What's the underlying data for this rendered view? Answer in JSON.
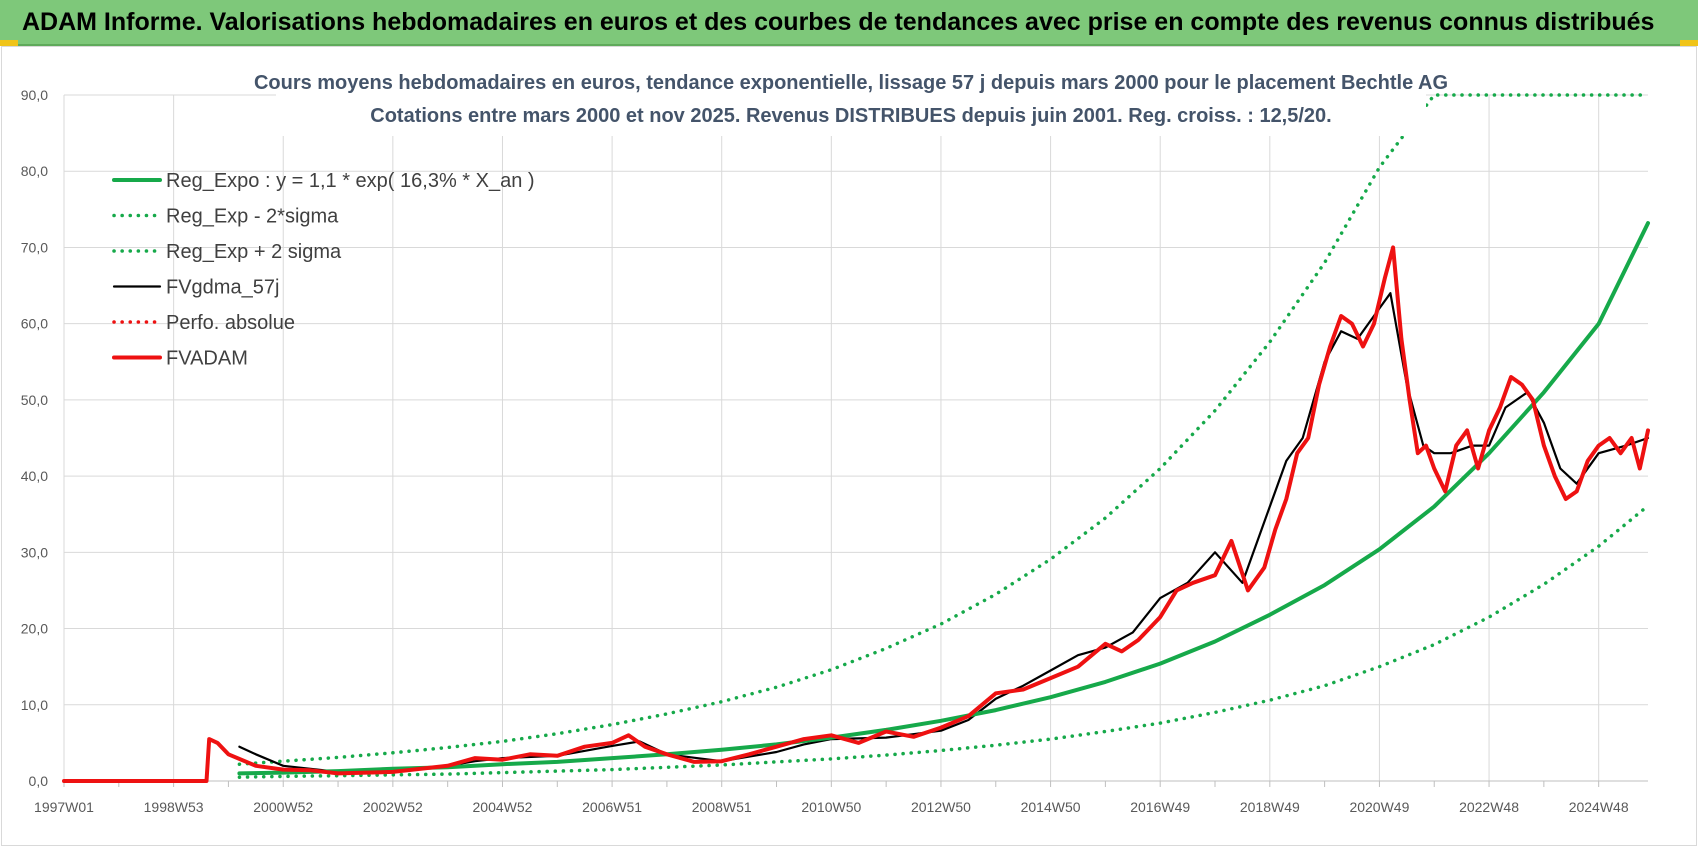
{
  "banner": {
    "title": "ADAM Informe. Valorisations hebdomadaires en euros et des courbes de tendances avec prise en compte des revenus connus distribués"
  },
  "chart_data": {
    "type": "line",
    "title": "Cours moyens hebdomadaires en euros, tendance exponentielle, lissage 57 j depuis mars 2000 pour le placement Bechtle AG",
    "subtitle": "Cotations entre mars 2000 et nov 2025. Revenus DISTRIBUES depuis juin 2001. Reg. croiss. : 12,5/20.",
    "xlabel": "",
    "ylabel": "",
    "ylim": [
      0,
      90
    ],
    "xlim": [
      1997.0,
      2025.9
    ],
    "yticks": [
      "0,0",
      "10,0",
      "20,0",
      "30,0",
      "40,0",
      "50,0",
      "60,0",
      "70,0",
      "80,0",
      "90,0"
    ],
    "xtick_labels": [
      "1997W01",
      "1998W53",
      "2000W52",
      "2002W52",
      "2004W52",
      "2006W51",
      "2008W51",
      "2010W50",
      "2012W50",
      "2014W50",
      "2016W49",
      "2018W49",
      "2020W49",
      "2022W48",
      "2024W48"
    ],
    "xtick_positions": [
      1997.0,
      1999.0,
      2001.0,
      2003.0,
      2005.0,
      2007.0,
      2009.0,
      2011.0,
      2013.0,
      2015.0,
      2017.0,
      2019.0,
      2021.0,
      2023.0,
      2025.0
    ],
    "grid": true,
    "legend_position": "top-left",
    "series": [
      {
        "name": "Reg_Expo : y = 1,1 * exp( 16,3% *  X_an )",
        "color": "#16a94a",
        "style": "solid",
        "x": [
          2000.2,
          2001,
          2002,
          2003,
          2004,
          2005,
          2006,
          2007,
          2008,
          2009,
          2010,
          2011,
          2012,
          2013,
          2014,
          2015,
          2016,
          2017,
          2018,
          2019,
          2020,
          2021,
          2022,
          2023,
          2024,
          2025,
          2025.9
        ],
        "values": [
          1.0,
          1.1,
          1.3,
          1.6,
          1.8,
          2.2,
          2.5,
          3.0,
          3.5,
          4.1,
          4.8,
          5.7,
          6.7,
          7.9,
          9.3,
          11.0,
          13.0,
          15.4,
          18.3,
          21.8,
          25.7,
          30.4,
          36.0,
          43.0,
          51.0,
          60.0,
          73.2
        ]
      },
      {
        "name": "Reg_Exp - 2*sigma",
        "color": "#16a94a",
        "style": "dotted",
        "x": [
          2000.2,
          2001,
          2002,
          2003,
          2004,
          2005,
          2006,
          2007,
          2008,
          2009,
          2010,
          2011,
          2012,
          2013,
          2014,
          2015,
          2016,
          2017,
          2018,
          2019,
          2020,
          2021,
          2022,
          2023,
          2024,
          2025,
          2025.9
        ],
        "values": [
          0.5,
          0.6,
          0.7,
          0.8,
          0.9,
          1.1,
          1.3,
          1.5,
          1.8,
          2.1,
          2.5,
          2.9,
          3.4,
          4.0,
          4.7,
          5.5,
          6.5,
          7.6,
          9.0,
          10.6,
          12.5,
          15.0,
          17.9,
          21.5,
          25.8,
          30.8,
          36.1
        ]
      },
      {
        "name": "Reg_Exp + 2 sigma",
        "color": "#16a94a",
        "style": "dotted",
        "x": [
          2000.2,
          2001,
          2002,
          2003,
          2004,
          2005,
          2006,
          2007,
          2008,
          2009,
          2010,
          2011,
          2012,
          2013,
          2014,
          2015,
          2016,
          2017,
          2018,
          2019,
          2020,
          2021,
          2022,
          2023,
          2024,
          2025,
          2025.9
        ],
        "values": [
          2.2,
          2.6,
          3.1,
          3.7,
          4.4,
          5.2,
          6.2,
          7.4,
          8.8,
          10.4,
          12.3,
          14.6,
          17.4,
          20.6,
          24.5,
          29.1,
          34.5,
          41.0,
          48.6,
          57.6,
          68.0,
          80.5,
          90.0,
          90.0,
          90.0,
          90.0,
          90.0
        ]
      },
      {
        "name": "FVgdma_57j",
        "color": "#000000",
        "style": "solid",
        "x": [
          2000.2,
          2000.5,
          2001,
          2001.5,
          2002,
          2003,
          2004,
          2004.5,
          2005,
          2006,
          2007,
          2007.5,
          2008,
          2009,
          2010,
          2010.5,
          2011,
          2012,
          2013,
          2013.5,
          2014,
          2014.5,
          2015,
          2015.5,
          2016,
          2016.5,
          2017,
          2017.5,
          2018,
          2018.5,
          2019,
          2019.3,
          2019.6,
          2020,
          2020.3,
          2020.6,
          2021,
          2021.2,
          2021.5,
          2021.8,
          2022,
          2022.3,
          2022.7,
          2023,
          2023.3,
          2023.7,
          2024,
          2024.3,
          2024.6,
          2025,
          2025.5,
          2025.9
        ],
        "values": [
          4.5,
          3.5,
          2.0,
          1.6,
          1.2,
          1.2,
          2.0,
          2.6,
          3.0,
          3.3,
          4.6,
          5.2,
          3.5,
          2.6,
          3.8,
          4.8,
          5.5,
          5.7,
          6.6,
          8.0,
          10.8,
          12.5,
          14.5,
          16.5,
          17.5,
          19.5,
          24.0,
          26.0,
          30.0,
          26.0,
          36.0,
          42.0,
          45.0,
          55.0,
          59.0,
          58.0,
          62.0,
          64.0,
          52.0,
          44.0,
          43.0,
          43.0,
          44.0,
          44.0,
          49.0,
          51.0,
          47.0,
          41.0,
          39.0,
          43.0,
          44.0,
          45.0
        ]
      },
      {
        "name": "Perfo. absolue",
        "color": "#ee1111",
        "style": "dotted",
        "x": [],
        "values": []
      },
      {
        "name": "FVADAM",
        "color": "#ee1111",
        "style": "solid",
        "x": [
          1997.0,
          1999.6,
          1999.65,
          1999.8,
          2000.0,
          2000.5,
          2001,
          2001.5,
          2002,
          2003,
          2004,
          2004.5,
          2005,
          2005.5,
          2006,
          2006.5,
          2007,
          2007.3,
          2007.6,
          2008,
          2008.5,
          2009,
          2009.5,
          2010,
          2010.5,
          2011,
          2011.5,
          2012,
          2012.5,
          2013,
          2013.5,
          2014,
          2014.5,
          2015,
          2015.5,
          2016,
          2016.3,
          2016.6,
          2017,
          2017.3,
          2017.6,
          2018,
          2018.3,
          2018.6,
          2018.9,
          2019.1,
          2019.3,
          2019.5,
          2019.7,
          2019.9,
          2020.1,
          2020.3,
          2020.5,
          2020.7,
          2020.9,
          2021.1,
          2021.25,
          2021.4,
          2021.55,
          2021.7,
          2021.85,
          2022.0,
          2022.2,
          2022.4,
          2022.6,
          2022.8,
          2023.0,
          2023.2,
          2023.4,
          2023.6,
          2023.8,
          2024.0,
          2024.2,
          2024.4,
          2024.6,
          2024.8,
          2025.0,
          2025.2,
          2025.4,
          2025.6,
          2025.75,
          2025.9
        ],
        "values": [
          0.0,
          0.0,
          5.5,
          5.0,
          3.5,
          2.0,
          1.5,
          1.4,
          1.0,
          1.2,
          2.0,
          3.0,
          2.8,
          3.5,
          3.3,
          4.5,
          5.0,
          6.0,
          4.5,
          3.5,
          2.5,
          2.6,
          3.5,
          4.5,
          5.5,
          6.0,
          5.0,
          6.5,
          5.8,
          7.0,
          8.5,
          11.5,
          12.0,
          13.5,
          15.0,
          18.0,
          17.0,
          18.5,
          21.5,
          25.0,
          26.0,
          27.0,
          31.5,
          25.0,
          28.0,
          33.0,
          37.0,
          43.0,
          45.0,
          52.0,
          57.0,
          61.0,
          60.0,
          57.0,
          60.0,
          66.0,
          70.0,
          58.0,
          50.0,
          43.0,
          44.0,
          41.0,
          38.0,
          44.0,
          46.0,
          41.0,
          46.0,
          49.0,
          53.0,
          52.0,
          50.0,
          44.0,
          40.0,
          37.0,
          38.0,
          42.0,
          44.0,
          45.0,
          43.0,
          45.0,
          41.0,
          46.0
        ]
      }
    ]
  }
}
